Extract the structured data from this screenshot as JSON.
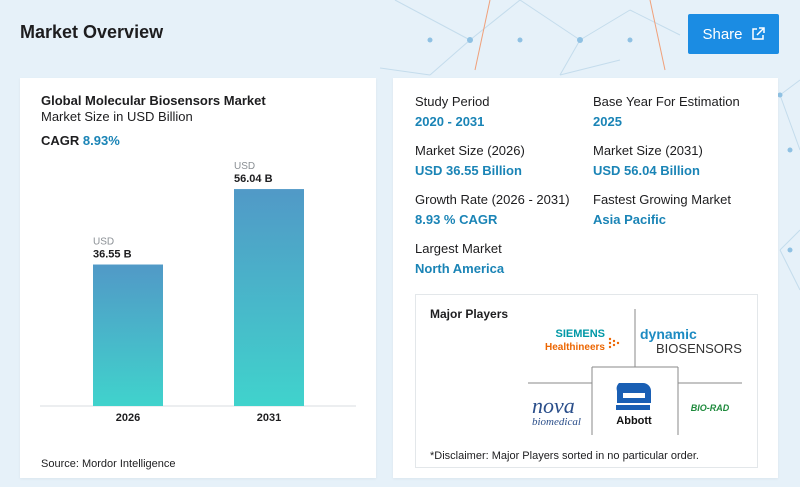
{
  "header": {
    "title": "Market Overview",
    "share_label": "Share"
  },
  "chart_data": {
    "type": "bar",
    "title": "Global Molecular Biosensors Market",
    "subtitle": "Market Size in USD Billion",
    "cagr_label": "CAGR",
    "cagr_value": "8.93%",
    "categories": [
      "2026",
      "2031"
    ],
    "values": [
      36.55,
      56.04
    ],
    "value_prefix": "USD",
    "value_labels": [
      "36.55 B",
      "56.04 B"
    ],
    "ylim": [
      0,
      62
    ],
    "grid": false,
    "bar_color_top": "#5199c7",
    "bar_color_bottom": "#40d3cc",
    "source": "Source: Mordor Intelligence"
  },
  "info": {
    "study_period": {
      "label": "Study Period",
      "value": "2020 - 2031"
    },
    "base_year": {
      "label": "Base Year For Estimation",
      "value": "2025"
    },
    "market_size_2026": {
      "label": "Market Size (2026)",
      "value": "USD 36.55 Billion"
    },
    "market_size_2031": {
      "label": "Market Size (2031)",
      "value": "USD 56.04 Billion"
    },
    "growth_rate": {
      "label": "Growth Rate (2026 - 2031)",
      "value": "8.93 % CAGR"
    },
    "fastest_market": {
      "label": "Fastest Growing Market",
      "value": "Asia Pacific"
    },
    "largest_market": {
      "label": "Largest Market",
      "value": "North America"
    }
  },
  "players": {
    "title": "Major Players",
    "disclaimer": "*Disclaimer: Major Players sorted in no particular order.",
    "logos": {
      "siemens_line1": "SIEMENS",
      "siemens_line2": "Healthineers",
      "dynamic_line1": "dynamic",
      "dynamic_line2": "BIOSENSORS",
      "nova_line1": "nova",
      "nova_line2": "biomedical",
      "abbott": "Abbott",
      "biorad": "BIO-RAD"
    }
  },
  "colors": {
    "accent": "#1a84b6",
    "share_button": "#1b8ce3",
    "page_bg": "#e6f1f9"
  }
}
